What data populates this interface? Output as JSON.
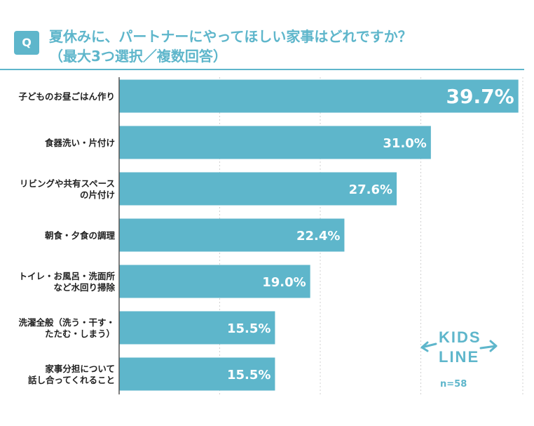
{
  "header": {
    "badge": "Q",
    "title_line1": "夏休みに、パートナーにやってほしい家事はどれですか？",
    "title_line2": "（最大3つ選択／複数回答）"
  },
  "colors": {
    "accent": "#5eb6cb",
    "bar": "#5eb6cb",
    "value_text": "#ffffff",
    "gridline": "#d0d0d0"
  },
  "chart_data": {
    "type": "bar",
    "orientation": "horizontal",
    "title": "夏休みに、パートナーにやってほしい家事はどれですか？（最大3つ選択／複数回答）",
    "unit": "%",
    "xlim": [
      0,
      40
    ],
    "grid": true,
    "categories": [
      [
        "子どものお昼ごはん作り"
      ],
      [
        "食器洗い・片付け"
      ],
      [
        "リビングや共有スペース",
        "の片付け"
      ],
      [
        "朝食・夕食の調理"
      ],
      [
        "トイレ・お風呂・洗面所",
        "など水回り掃除"
      ],
      [
        "洗濯全般（洗う・干す・",
        "たたむ・しまう）"
      ],
      [
        "家事分担について",
        "話し合ってくれること"
      ]
    ],
    "values": [
      39.7,
      31.0,
      27.6,
      22.4,
      19.0,
      15.5,
      15.5
    ],
    "value_labels": [
      "39.7%",
      "31.0%",
      "27.6%",
      "22.4%",
      "19.0%",
      "15.5%",
      "15.5%"
    ]
  },
  "logo": {
    "line1": "KIDS",
    "line2": "LINE"
  },
  "sample": "n=58"
}
